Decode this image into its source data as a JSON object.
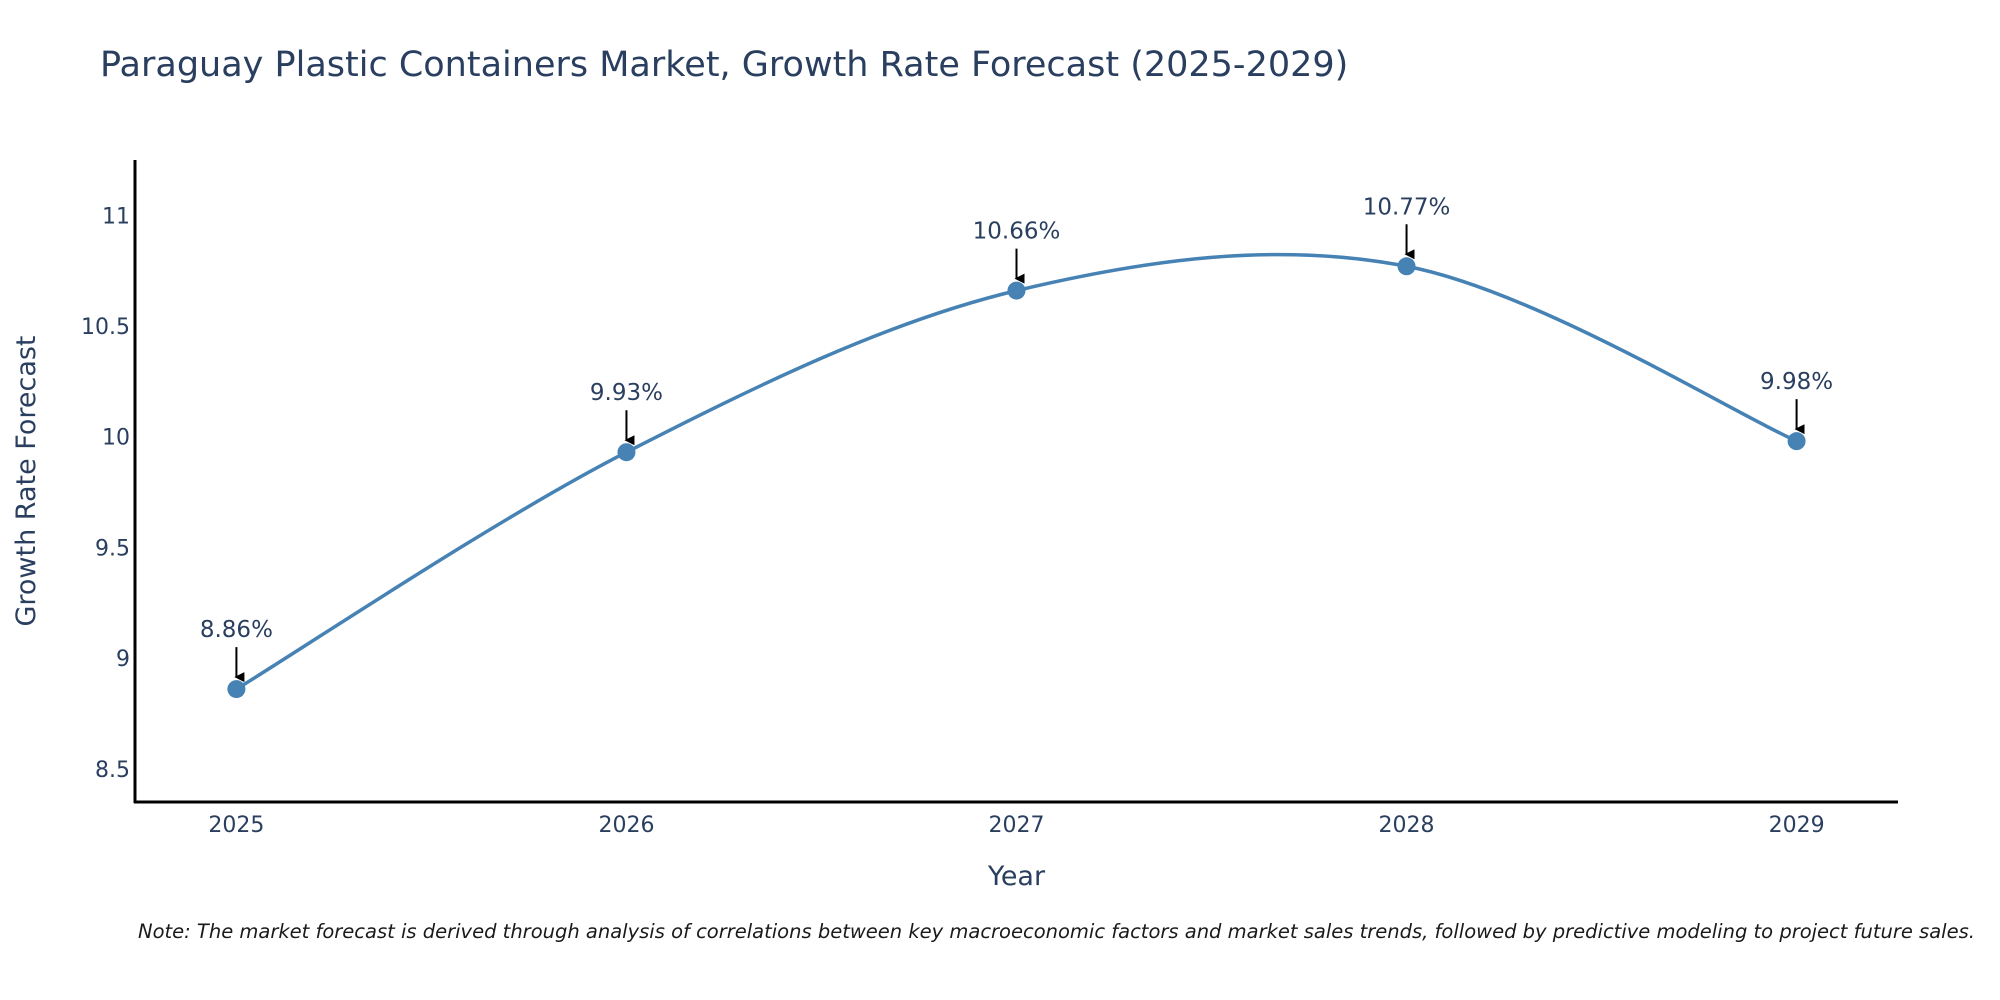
{
  "chart_data": {
    "type": "line",
    "title": "Paraguay Plastic Containers Market, Growth Rate Forecast (2025-2029)",
    "xlabel": "Year",
    "ylabel": "Growth Rate Forecast",
    "x": [
      2025,
      2026,
      2027,
      2028,
      2029
    ],
    "x_tick_labels": [
      "2025",
      "2026",
      "2027",
      "2028",
      "2029"
    ],
    "series": [
      {
        "name": "Growth Rate Forecast",
        "values": [
          8.86,
          9.93,
          10.66,
          10.77,
          9.98
        ],
        "data_labels": [
          "8.86%",
          "9.93%",
          "10.66%",
          "10.77%",
          "9.98%"
        ],
        "line": "spline",
        "markers": true
      }
    ],
    "y_ticks": [
      8.5,
      9,
      9.5,
      10,
      10.5,
      11
    ],
    "y_tick_labels": [
      "8.5",
      "9",
      "9.5",
      "10",
      "10.5",
      "11"
    ],
    "ylim": [
      8.35,
      11.25
    ],
    "xlim": [
      2024.74,
      2029.26
    ],
    "grid": false,
    "legend": "none",
    "note": "Note: The market forecast is derived through analysis of correlations between key macroeconomic factors and market sales trends, followed by predictive modeling to project future sales."
  },
  "colors": {
    "series": "#4682b4",
    "text": "#2a3f5f",
    "axis": "#000000",
    "background": "#ffffff"
  }
}
